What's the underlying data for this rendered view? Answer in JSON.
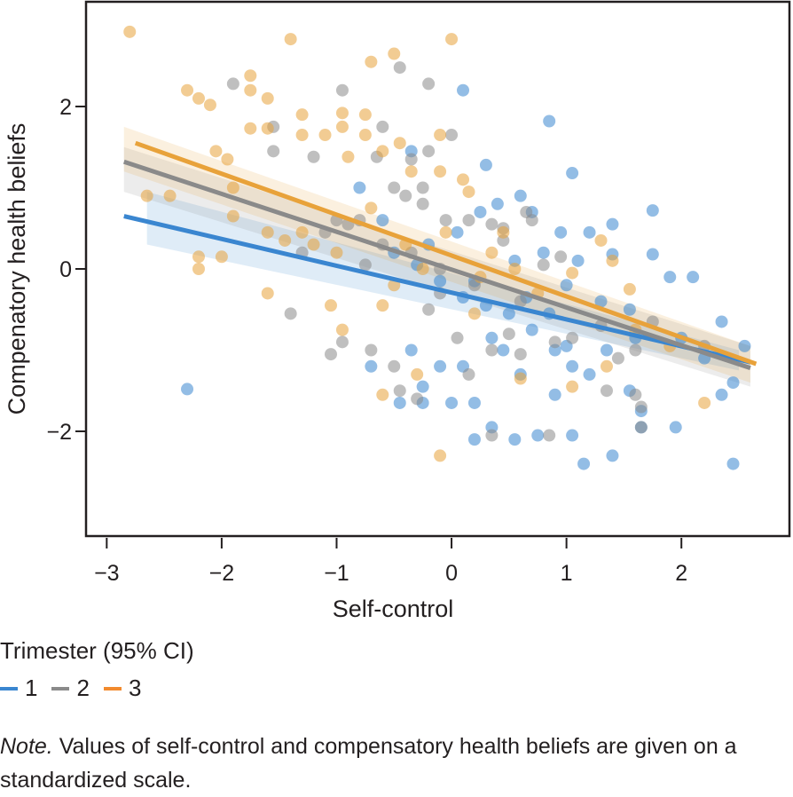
{
  "chart_data": {
    "type": "scatter",
    "title": "",
    "xlabel": "Self-control",
    "ylabel": "Compenatory health beliefs",
    "xlim": [
      -3.18,
      2.94
    ],
    "ylim": [
      -3.29,
      3.29
    ],
    "xticks": [
      -3,
      -2,
      -1,
      0,
      1,
      2
    ],
    "xtick_labels": [
      "−3",
      "−2",
      "−1",
      "0",
      "1",
      "2"
    ],
    "yticks": [
      -2,
      0,
      2
    ],
    "ytick_labels": [
      "−2",
      "0",
      "2"
    ],
    "grid": false,
    "legend": {
      "title": "Trimester (95% CI)",
      "placement": "bottom-left"
    },
    "series": [
      {
        "name": "1",
        "color": "#3a86d0",
        "fit": {
          "x": [
            -2.85,
            2.6
          ],
          "y": [
            0.65,
            -1.15
          ]
        },
        "ci": {
          "x": [
            -2.65,
            2.5
          ],
          "upper": [
            0.95,
            -1.0
          ],
          "lower": [
            0.3,
            -1.25
          ]
        },
        "points": [
          [
            -2.3,
            -1.48
          ],
          [
            -0.8,
            1.0
          ],
          [
            -0.35,
            1.45
          ],
          [
            0.1,
            2.2
          ],
          [
            0.3,
            1.28
          ],
          [
            0.85,
            1.82
          ],
          [
            1.05,
            1.18
          ],
          [
            0.6,
            0.9
          ],
          [
            0.7,
            0.7
          ],
          [
            0.95,
            0.45
          ],
          [
            1.2,
            0.45
          ],
          [
            1.4,
            0.55
          ],
          [
            1.75,
            0.72
          ],
          [
            1.75,
            0.18
          ],
          [
            1.4,
            0.18
          ],
          [
            1.9,
            -0.1
          ],
          [
            2.1,
            -0.1
          ],
          [
            2.35,
            -0.65
          ],
          [
            2.0,
            -0.85
          ],
          [
            2.45,
            -1.4
          ],
          [
            2.35,
            -1.55
          ],
          [
            1.95,
            -1.95
          ],
          [
            2.45,
            -2.4
          ],
          [
            1.4,
            -2.3
          ],
          [
            1.15,
            -2.4
          ],
          [
            1.05,
            -2.05
          ],
          [
            0.75,
            -2.05
          ],
          [
            0.55,
            -2.1
          ],
          [
            0.35,
            -1.95
          ],
          [
            0.2,
            -2.1
          ],
          [
            0.2,
            -1.65
          ],
          [
            0.0,
            -1.65
          ],
          [
            -0.25,
            -1.65
          ],
          [
            -0.45,
            -1.65
          ],
          [
            -0.25,
            -1.45
          ],
          [
            0.1,
            -1.2
          ],
          [
            -0.1,
            -1.2
          ],
          [
            -0.35,
            -1.0
          ],
          [
            -0.7,
            -1.2
          ],
          [
            0.45,
            -1.0
          ],
          [
            0.6,
            -1.3
          ],
          [
            0.9,
            -1.55
          ],
          [
            1.2,
            -1.3
          ],
          [
            1.55,
            -1.5
          ],
          [
            1.65,
            -1.75
          ],
          [
            1.65,
            -1.95
          ],
          [
            1.05,
            -1.2
          ],
          [
            0.7,
            -0.75
          ],
          [
            0.5,
            -0.55
          ],
          [
            0.3,
            -0.45
          ],
          [
            0.1,
            -0.35
          ],
          [
            -0.1,
            -0.15
          ],
          [
            -0.3,
            0.05
          ],
          [
            -0.5,
            0.2
          ],
          [
            -0.6,
            0.6
          ],
          [
            -0.2,
            0.3
          ],
          [
            0.05,
            0.45
          ],
          [
            0.25,
            0.7
          ],
          [
            0.4,
            0.8
          ],
          [
            0.8,
            0.2
          ],
          [
            1.0,
            -0.2
          ],
          [
            1.3,
            -0.4
          ],
          [
            1.55,
            -0.5
          ],
          [
            1.6,
            -0.85
          ],
          [
            1.35,
            -1.0
          ],
          [
            1.0,
            -0.95
          ],
          [
            0.85,
            -0.55
          ],
          [
            0.65,
            -0.35
          ],
          [
            0.2,
            -0.15
          ],
          [
            0.35,
            -0.85
          ],
          [
            0.9,
            -1.0
          ],
          [
            2.2,
            -1.1
          ],
          [
            2.55,
            -0.95
          ],
          [
            1.1,
            0.1
          ],
          [
            0.55,
            0.1
          ]
        ]
      },
      {
        "name": "2",
        "color": "#8a8a8a",
        "fit": {
          "x": [
            -2.85,
            2.6
          ],
          "y": [
            1.32,
            -1.22
          ]
        },
        "ci": {
          "x": [
            -2.85,
            2.6
          ],
          "upper": [
            1.5,
            -0.95
          ],
          "lower": [
            0.95,
            -1.45
          ]
        },
        "points": [
          [
            -1.9,
            2.28
          ],
          [
            -1.55,
            1.75
          ],
          [
            -1.55,
            1.45
          ],
          [
            -1.2,
            1.38
          ],
          [
            -1.0,
            0.6
          ],
          [
            -0.95,
            2.2
          ],
          [
            -0.6,
            1.75
          ],
          [
            -0.45,
            2.48
          ],
          [
            -0.2,
            2.28
          ],
          [
            0.0,
            1.65
          ],
          [
            -0.2,
            1.45
          ],
          [
            -0.35,
            1.35
          ],
          [
            -0.65,
            1.38
          ],
          [
            -0.8,
            0.6
          ],
          [
            -0.5,
            1.0
          ],
          [
            -0.4,
            0.9
          ],
          [
            -0.25,
            1.0
          ],
          [
            -0.25,
            0.8
          ],
          [
            -0.05,
            0.6
          ],
          [
            0.15,
            0.6
          ],
          [
            0.35,
            0.55
          ],
          [
            0.45,
            0.5
          ],
          [
            0.65,
            0.7
          ],
          [
            0.7,
            0.6
          ],
          [
            -1.4,
            -0.55
          ],
          [
            -1.05,
            -1.05
          ],
          [
            -0.95,
            -0.9
          ],
          [
            -0.7,
            -1.0
          ],
          [
            -0.5,
            -1.2
          ],
          [
            -0.45,
            -1.5
          ],
          [
            -0.3,
            -1.6
          ],
          [
            0.15,
            -1.3
          ],
          [
            0.35,
            -1.0
          ],
          [
            0.5,
            -0.8
          ],
          [
            0.6,
            -1.05
          ],
          [
            0.9,
            -0.9
          ],
          [
            0.85,
            -2.05
          ],
          [
            0.35,
            -2.05
          ],
          [
            1.65,
            -1.7
          ],
          [
            1.65,
            -1.95
          ],
          [
            1.45,
            -1.1
          ],
          [
            1.35,
            -1.5
          ],
          [
            1.6,
            -1.55
          ],
          [
            1.3,
            -0.7
          ],
          [
            1.6,
            -1.0
          ],
          [
            1.75,
            -0.65
          ],
          [
            2.2,
            -0.95
          ],
          [
            1.05,
            -0.85
          ],
          [
            0.6,
            -0.4
          ],
          [
            0.2,
            -0.2
          ],
          [
            -0.1,
            0.0
          ],
          [
            -0.35,
            0.2
          ],
          [
            -0.6,
            0.3
          ],
          [
            -0.9,
            0.55
          ],
          [
            -1.1,
            0.45
          ],
          [
            -1.3,
            0.2
          ],
          [
            -0.75,
            0.05
          ],
          [
            -0.2,
            -0.5
          ],
          [
            0.05,
            -0.85
          ],
          [
            -0.1,
            -0.3
          ],
          [
            0.45,
            0.35
          ],
          [
            0.95,
            0.15
          ],
          [
            0.8,
            0.05
          ]
        ]
      },
      {
        "name": "3",
        "color": "#e8a23a",
        "fit": {
          "x": [
            -2.75,
            2.65
          ],
          "y": [
            1.55,
            -1.17
          ]
        },
        "ci": {
          "x": [
            -2.85,
            2.6
          ],
          "upper": [
            1.75,
            -0.95
          ],
          "lower": [
            1.2,
            -1.4
          ]
        },
        "points": [
          [
            -2.8,
            2.92
          ],
          [
            -1.4,
            2.83
          ],
          [
            0.0,
            2.83
          ],
          [
            -0.5,
            2.65
          ],
          [
            -0.7,
            2.55
          ],
          [
            -2.3,
            2.2
          ],
          [
            -2.2,
            2.1
          ],
          [
            -2.1,
            2.02
          ],
          [
            -1.75,
            2.38
          ],
          [
            -1.75,
            2.2
          ],
          [
            -1.6,
            2.1
          ],
          [
            -1.3,
            1.9
          ],
          [
            -0.95,
            1.92
          ],
          [
            -1.75,
            1.73
          ],
          [
            -1.6,
            1.73
          ],
          [
            -1.3,
            1.65
          ],
          [
            -1.1,
            1.65
          ],
          [
            -0.95,
            1.75
          ],
          [
            -0.9,
            1.38
          ],
          [
            -0.75,
            1.9
          ],
          [
            -0.75,
            1.65
          ],
          [
            -0.6,
            1.45
          ],
          [
            -0.45,
            1.55
          ],
          [
            -0.35,
            1.2
          ],
          [
            -0.1,
            1.65
          ],
          [
            -0.1,
            1.2
          ],
          [
            0.1,
            1.1
          ],
          [
            -2.05,
            1.45
          ],
          [
            -1.95,
            1.35
          ],
          [
            -1.9,
            1.0
          ],
          [
            -2.65,
            0.9
          ],
          [
            -2.45,
            0.9
          ],
          [
            -2.2,
            0.15
          ],
          [
            -2.2,
            0.0
          ],
          [
            -2.0,
            0.15
          ],
          [
            -1.9,
            0.65
          ],
          [
            -1.6,
            0.45
          ],
          [
            -1.6,
            -0.3
          ],
          [
            -1.3,
            0.45
          ],
          [
            -1.2,
            0.3
          ],
          [
            -1.0,
            0.2
          ],
          [
            -1.05,
            -0.45
          ],
          [
            -0.95,
            -0.75
          ],
          [
            -0.6,
            -0.45
          ],
          [
            -0.5,
            -0.2
          ],
          [
            -0.6,
            -1.55
          ],
          [
            -0.3,
            -1.3
          ],
          [
            -0.1,
            -2.3
          ],
          [
            0.25,
            -0.1
          ],
          [
            0.45,
            0.45
          ],
          [
            0.55,
            0.0
          ],
          [
            0.75,
            -0.3
          ],
          [
            1.05,
            -0.05
          ],
          [
            1.3,
            0.35
          ],
          [
            1.4,
            0.1
          ],
          [
            1.55,
            -0.25
          ],
          [
            1.6,
            -0.75
          ],
          [
            1.9,
            -0.95
          ],
          [
            2.2,
            -1.65
          ],
          [
            1.35,
            -1.2
          ],
          [
            1.05,
            -1.45
          ],
          [
            0.6,
            -1.35
          ],
          [
            0.2,
            -0.55
          ],
          [
            -0.25,
            0.0
          ],
          [
            -0.4,
            0.3
          ],
          [
            -0.7,
            0.75
          ],
          [
            -1.45,
            0.35
          ],
          [
            -0.05,
            0.45
          ],
          [
            0.15,
            0.95
          ],
          [
            0.35,
            0.2
          ]
        ]
      }
    ]
  },
  "legend": {
    "title": "Trimester (95% CI)",
    "items": [
      {
        "label": "1",
        "color": "#3a86d0"
      },
      {
        "label": "2",
        "color": "#8a8a8a"
      },
      {
        "label": "3",
        "color": "#f28a2e"
      }
    ]
  },
  "note": {
    "prefix": "Note.",
    "text": " Values of self-control and compensatory health beliefs are given on a standardized scale."
  }
}
